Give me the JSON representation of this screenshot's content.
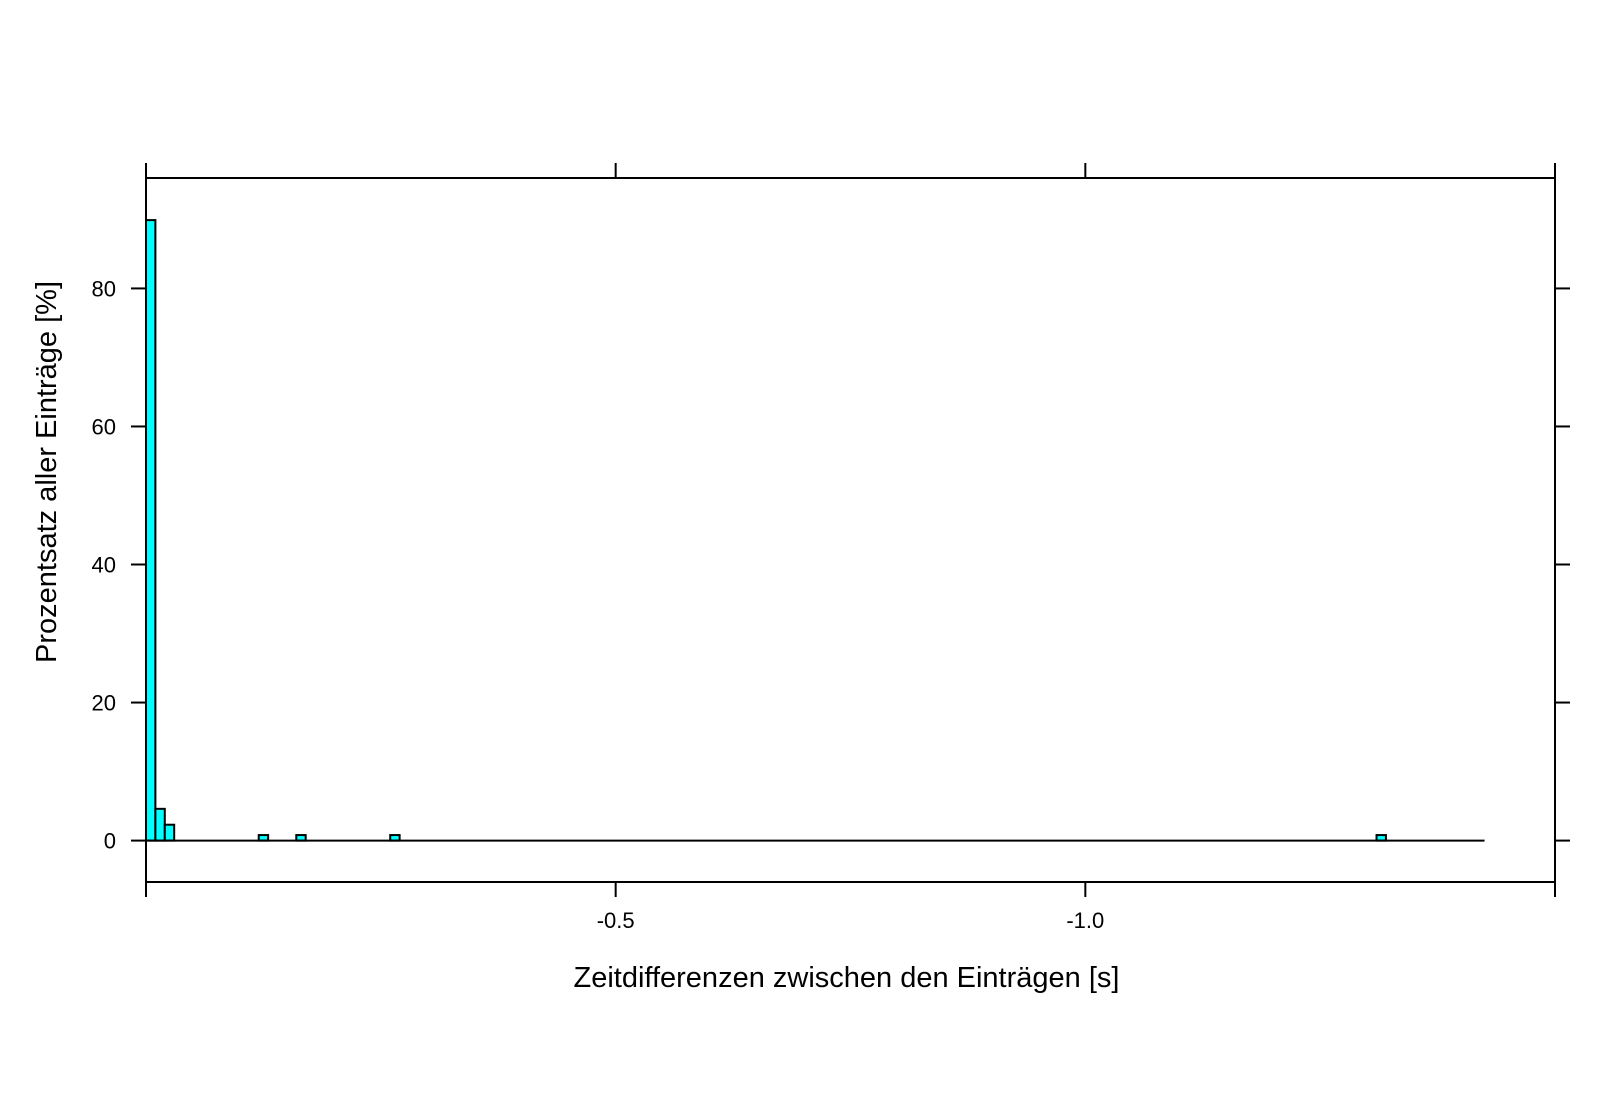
{
  "chart_data": {
    "type": "bar",
    "xlabel": "Zeitdifferenzen zwischen den Einträgen [s]",
    "ylabel": "Prozentsatz aller Einträge [%]",
    "xlim": [
      0,
      -1.5
    ],
    "ylim": [
      -6,
      96
    ],
    "x_ticks": [
      {
        "value": -0.5,
        "label": "-0.5"
      },
      {
        "value": -1.0,
        "label": "-1.0"
      }
    ],
    "y_ticks": [
      {
        "value": 0,
        "label": "0"
      },
      {
        "value": 20,
        "label": "20"
      },
      {
        "value": 40,
        "label": "40"
      },
      {
        "value": 60,
        "label": "60"
      },
      {
        "value": 80,
        "label": "80"
      }
    ],
    "baseline_range": [
      0,
      -1.425
    ],
    "bin_width": 0.01,
    "bars": [
      {
        "x_start": 0.0,
        "x_end": -0.01,
        "value": 89.9
      },
      {
        "x_start": -0.01,
        "x_end": -0.02,
        "value": 4.6
      },
      {
        "x_start": -0.02,
        "x_end": -0.03,
        "value": 2.3
      },
      {
        "x_start": -0.12,
        "x_end": -0.13,
        "value": 0.8
      },
      {
        "x_start": -0.16,
        "x_end": -0.17,
        "value": 0.8
      },
      {
        "x_start": -0.26,
        "x_end": -0.27,
        "value": 0.8
      },
      {
        "x_start": -1.31,
        "x_end": -1.32,
        "value": 0.8
      }
    ],
    "grid": false,
    "legend": "none",
    "colors": {
      "bar_fill": "#00ffff",
      "bar_stroke": "#000000",
      "axis": "#000000"
    }
  }
}
